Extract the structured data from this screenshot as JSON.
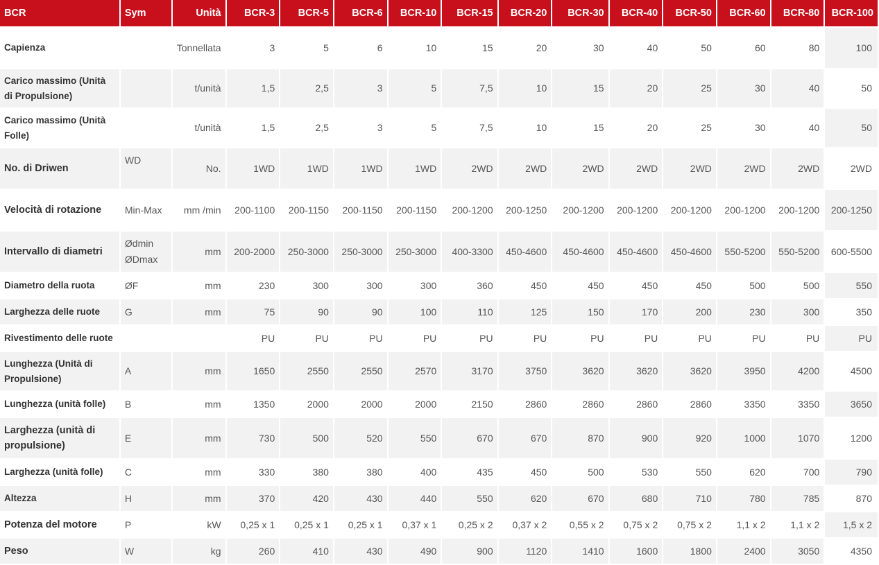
{
  "table": {
    "headers": [
      "BCR",
      "Sym",
      "Unità",
      "BCR-3",
      "BCR-5",
      "BCR-6",
      "BCR-10",
      "BCR-15",
      "BCR-20",
      "BCR-30",
      "BCR-40",
      "BCR-50",
      "BCR-60",
      "BCR-80",
      "BCR-100"
    ],
    "rows": [
      {
        "label": "Capienza",
        "sym": "",
        "unit": "Tonnellata",
        "values": [
          "3",
          "5",
          "6",
          "10",
          "15",
          "20",
          "30",
          "40",
          "50",
          "60",
          "80",
          "100"
        ]
      },
      {
        "label": "Carico massimo (Unità di Propulsione)",
        "sym": "",
        "unit": "t/unità",
        "values": [
          "1,5",
          "2,5",
          "3",
          "5",
          "7,5",
          "10",
          "15",
          "20",
          "25",
          "30",
          "40",
          "50"
        ]
      },
      {
        "label": "Carico massimo (Unità Folle)",
        "sym": "",
        "unit": "t/unità",
        "values": [
          "1,5",
          "2,5",
          "3",
          "5",
          "7,5",
          "10",
          "15",
          "20",
          "25",
          "30",
          "40",
          "50"
        ]
      },
      {
        "label": "No. di Driwen",
        "sym": "WD",
        "unit": "No.",
        "values": [
          "1WD",
          "1WD",
          "1WD",
          "1WD",
          "2WD",
          "2WD",
          "2WD",
          "2WD",
          "2WD",
          "2WD",
          "2WD",
          "2WD"
        ]
      },
      {
        "label": "Velocità di rotazione",
        "sym": "Min-Max",
        "unit": "mm /min",
        "values": [
          "200-1100",
          "200-1150",
          "200-1150",
          "200-1150",
          "200-1200",
          "200-1250",
          "200-1200",
          "200-1200",
          "200-1200",
          "200-1200",
          "200-1200",
          "200-1250"
        ]
      },
      {
        "label": "Intervallo di diametri",
        "sym": "Ødmin ØDmax",
        "unit": "mm",
        "values": [
          "200-2000",
          "250-3000",
          "250-3000",
          "250-3000",
          "400-3300",
          "450-4600",
          "450-4600",
          "450-4600",
          "450-4600",
          "550-5200",
          "550-5200",
          "600-5500"
        ]
      },
      {
        "label": "Diametro della ruota",
        "sym": "ØF",
        "unit": "mm",
        "values": [
          "230",
          "300",
          "300",
          "300",
          "360",
          "450",
          "450",
          "450",
          "450",
          "500",
          "500",
          "550"
        ]
      },
      {
        "label": "Larghezza delle ruote",
        "sym": "G",
        "unit": "mm",
        "values": [
          "75",
          "90",
          "90",
          "100",
          "110",
          "125",
          "150",
          "170",
          "200",
          "230",
          "300",
          "350"
        ]
      },
      {
        "label": "Rivestimento delle ruote",
        "sym": "",
        "unit": "",
        "values": [
          "PU",
          "PU",
          "PU",
          "PU",
          "PU",
          "PU",
          "PU",
          "PU",
          "PU",
          "PU",
          "PU",
          "PU"
        ]
      },
      {
        "label": "Lunghezza (Unità di Propulsione)",
        "sym": "A",
        "unit": "mm",
        "values": [
          "1650",
          "2550",
          "2550",
          "2570",
          "3170",
          "3750",
          "3620",
          "3620",
          "3620",
          "3950",
          "4200",
          "4500"
        ]
      },
      {
        "label": "Lunghezza (unità folle)",
        "sym": "B",
        "unit": "mm",
        "values": [
          "1350",
          "2000",
          "2000",
          "2000",
          "2150",
          "2860",
          "2860",
          "2860",
          "2860",
          "3350",
          "3350",
          "3650"
        ]
      },
      {
        "label": "Larghezza (unità di propulsione)",
        "sym": "E",
        "unit": "mm",
        "values": [
          "730",
          "500",
          "520",
          "550",
          "670",
          "670",
          "870",
          "900",
          "920",
          "1000",
          "1070",
          "1200"
        ]
      },
      {
        "label": "Larghezza (unità folle)",
        "sym": "C",
        "unit": "mm",
        "values": [
          "330",
          "380",
          "380",
          "400",
          "435",
          "450",
          "500",
          "530",
          "550",
          "620",
          "700",
          "790"
        ]
      },
      {
        "label": "Altezza",
        "sym": "H",
        "unit": "mm",
        "values": [
          "370",
          "420",
          "430",
          "440",
          "550",
          "620",
          "670",
          "680",
          "710",
          "780",
          "785",
          "870"
        ]
      },
      {
        "label": "Potenza del motore",
        "sym": "P",
        "unit": "kW",
        "values": [
          "0,25 x 1",
          "0,25 x 1",
          "0,25 x 1",
          "0,37 x 1",
          "0,25 x 2",
          "0,37 x 2",
          "0,55 x 2",
          "0,75 x 2",
          "0,75 x 2",
          "1,1 x 2",
          "1,1 x 2",
          "1,5 x 2"
        ]
      },
      {
        "label": "Peso",
        "sym": "W",
        "unit": "kg",
        "values": [
          "260",
          "410",
          "430",
          "490",
          "900",
          "1120",
          "1410",
          "1600",
          "1800",
          "2400",
          "3050",
          "4350"
        ]
      }
    ]
  },
  "colors": {
    "header_bg": "#c8101c",
    "header_text": "#ffffff",
    "row_alt": "#f2f2f2"
  }
}
